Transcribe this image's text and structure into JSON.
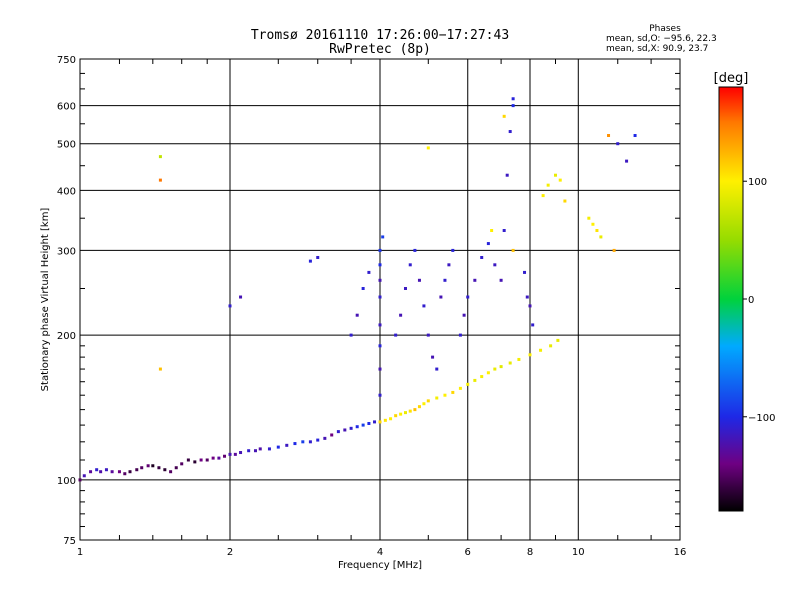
{
  "title": "Tromsø 20161110 17:26:00−17:27:43",
  "subtitle": "RwPretec (8p)",
  "phases": {
    "heading": "Phases",
    "line_o": "mean, sd,O:  −95.6, 22.3",
    "line_x": "mean, sd,X:  90.9, 23.7"
  },
  "colorbar": {
    "label": "[deg]",
    "ticks": [
      {
        "value": 100,
        "label": "100"
      },
      {
        "value": 0,
        "label": "0"
      },
      {
        "value": -100,
        "label": "−100"
      }
    ],
    "range": [
      -180,
      180
    ]
  },
  "chart_data": {
    "type": "scatter",
    "title": "Tromsø 20161110 17:26:00−17:27:43",
    "subtitle": "RwPretec (8p)",
    "xlabel": "Frequency [MHz]",
    "ylabel": "Stationary phase Virtual Height [km]",
    "xscale": "log",
    "yscale": "log",
    "xlim": [
      1,
      16
    ],
    "ylim": [
      75,
      750
    ],
    "grid": true,
    "x_ticks": [
      {
        "value": 1,
        "label": "1"
      },
      {
        "value": 2,
        "label": "2"
      },
      {
        "value": 4,
        "label": "4"
      },
      {
        "value": 6,
        "label": "6"
      },
      {
        "value": 8,
        "label": "8"
      },
      {
        "value": 10,
        "label": "10"
      },
      {
        "value": 16,
        "label": "16"
      }
    ],
    "y_ticks": [
      {
        "value": 75,
        "label": "75"
      },
      {
        "value": 100,
        "label": "100"
      },
      {
        "value": 200,
        "label": "200"
      },
      {
        "value": 300,
        "label": "300"
      },
      {
        "value": 400,
        "label": "400"
      },
      {
        "value": 500,
        "label": "500"
      },
      {
        "value": 600,
        "label": "600"
      },
      {
        "value": 750,
        "label": "750"
      }
    ],
    "color_variable": "phase [deg]",
    "points": [
      [
        1.0,
        100,
        -150
      ],
      [
        1.02,
        102,
        -120
      ],
      [
        1.05,
        104,
        -130
      ],
      [
        1.08,
        105,
        -110
      ],
      [
        1.1,
        104,
        -125
      ],
      [
        1.13,
        105,
        -115
      ],
      [
        1.16,
        104,
        -130
      ],
      [
        1.2,
        104,
        -140
      ],
      [
        1.23,
        103,
        -150
      ],
      [
        1.26,
        104,
        -160
      ],
      [
        1.3,
        105,
        -155
      ],
      [
        1.33,
        106,
        -150
      ],
      [
        1.37,
        107,
        -145
      ],
      [
        1.4,
        107,
        -170
      ],
      [
        1.44,
        106,
        -160
      ],
      [
        1.48,
        105,
        -165
      ],
      [
        1.52,
        104,
        -150
      ],
      [
        1.56,
        106,
        -155
      ],
      [
        1.6,
        108,
        -150
      ],
      [
        1.65,
        110,
        -160
      ],
      [
        1.7,
        109,
        -165
      ],
      [
        1.75,
        110,
        -140
      ],
      [
        1.8,
        110,
        -150
      ],
      [
        1.85,
        111,
        -140
      ],
      [
        1.9,
        111,
        -130
      ],
      [
        1.95,
        112,
        -145
      ],
      [
        2.0,
        113,
        -120
      ],
      [
        2.05,
        113,
        -130
      ],
      [
        2.1,
        114,
        -120
      ],
      [
        2.18,
        115,
        -110
      ],
      [
        2.25,
        115,
        -120
      ],
      [
        2.3,
        116,
        -125
      ],
      [
        2.4,
        116,
        -110
      ],
      [
        2.5,
        117,
        -100
      ],
      [
        2.6,
        118,
        -115
      ],
      [
        2.7,
        119,
        -100
      ],
      [
        2.8,
        120,
        -90
      ],
      [
        2.9,
        120,
        -110
      ],
      [
        3.0,
        121,
        -105
      ],
      [
        3.1,
        122,
        -120
      ],
      [
        3.2,
        124,
        -140
      ],
      [
        3.3,
        126,
        -110
      ],
      [
        3.4,
        127,
        -120
      ],
      [
        3.5,
        128,
        -110
      ],
      [
        3.6,
        129,
        -100
      ],
      [
        3.7,
        130,
        -90
      ],
      [
        3.8,
        131,
        -100
      ],
      [
        3.9,
        132,
        -110
      ],
      [
        4.0,
        132,
        110
      ],
      [
        4.1,
        133,
        105
      ],
      [
        4.2,
        134,
        100
      ],
      [
        4.3,
        136,
        110
      ],
      [
        4.4,
        137,
        100
      ],
      [
        4.5,
        138,
        90
      ],
      [
        4.6,
        139,
        105
      ],
      [
        4.7,
        140,
        120
      ],
      [
        4.8,
        142,
        110
      ],
      [
        4.9,
        144,
        100
      ],
      [
        5.0,
        146,
        110
      ],
      [
        5.2,
        148,
        95
      ],
      [
        5.4,
        150,
        100
      ],
      [
        5.6,
        152,
        110
      ],
      [
        5.8,
        155,
        100
      ],
      [
        6.0,
        158,
        95
      ],
      [
        6.2,
        161,
        90
      ],
      [
        6.4,
        164,
        95
      ],
      [
        6.6,
        167,
        100
      ],
      [
        6.8,
        170,
        90
      ],
      [
        7.0,
        172,
        85
      ],
      [
        7.3,
        175,
        90
      ],
      [
        7.6,
        178,
        95
      ],
      [
        8.0,
        182,
        100
      ],
      [
        8.4,
        186,
        95
      ],
      [
        8.8,
        190,
        90
      ],
      [
        9.1,
        195,
        90
      ],
      [
        4.0,
        150,
        -110
      ],
      [
        4.0,
        170,
        -120
      ],
      [
        4.0,
        190,
        -105
      ],
      [
        4.0,
        210,
        -115
      ],
      [
        4.0,
        240,
        -110
      ],
      [
        4.0,
        260,
        -120
      ],
      [
        4.0,
        280,
        -100
      ],
      [
        4.0,
        300,
        -95
      ],
      [
        4.05,
        320,
        -90
      ],
      [
        4.3,
        200,
        -110
      ],
      [
        4.4,
        220,
        -120
      ],
      [
        4.5,
        250,
        -115
      ],
      [
        4.6,
        280,
        -110
      ],
      [
        4.7,
        300,
        -105
      ],
      [
        4.8,
        260,
        -120
      ],
      [
        4.9,
        230,
        -110
      ],
      [
        5.0,
        200,
        -115
      ],
      [
        5.1,
        180,
        -120
      ],
      [
        5.2,
        170,
        -110
      ],
      [
        5.3,
        240,
        -120
      ],
      [
        5.4,
        260,
        -110
      ],
      [
        5.5,
        280,
        -115
      ],
      [
        5.6,
        300,
        -105
      ],
      [
        5.8,
        200,
        -110
      ],
      [
        5.9,
        220,
        -120
      ],
      [
        6.0,
        240,
        -110
      ],
      [
        6.2,
        260,
        -120
      ],
      [
        6.4,
        290,
        -110
      ],
      [
        6.6,
        310,
        -105
      ],
      [
        6.8,
        280,
        -115
      ],
      [
        7.0,
        260,
        -120
      ],
      [
        7.1,
        330,
        -110
      ],
      [
        7.2,
        430,
        -115
      ],
      [
        7.3,
        530,
        -110
      ],
      [
        7.4,
        620,
        -105
      ],
      [
        7.4,
        600,
        -100
      ],
      [
        7.8,
        270,
        -110
      ],
      [
        7.9,
        240,
        -115
      ],
      [
        8.0,
        230,
        -120
      ],
      [
        8.1,
        210,
        -110
      ],
      [
        8.5,
        390,
        100
      ],
      [
        8.7,
        410,
        95
      ],
      [
        9.0,
        430,
        90
      ],
      [
        9.2,
        420,
        100
      ],
      [
        9.4,
        380,
        110
      ],
      [
        10.5,
        350,
        95
      ],
      [
        10.7,
        340,
        100
      ],
      [
        10.9,
        330,
        105
      ],
      [
        11.1,
        320,
        90
      ],
      [
        12.0,
        500,
        -110
      ],
      [
        12.5,
        460,
        -115
      ],
      [
        1.45,
        470,
        70
      ],
      [
        1.45,
        420,
        150
      ],
      [
        1.45,
        170,
        120
      ],
      [
        2.0,
        230,
        -110
      ],
      [
        2.1,
        240,
        -120
      ],
      [
        2.9,
        285,
        -105
      ],
      [
        3.0,
        290,
        -110
      ],
      [
        3.5,
        200,
        -110
      ],
      [
        3.6,
        220,
        -120
      ],
      [
        3.7,
        250,
        -105
      ],
      [
        3.8,
        270,
        -110
      ],
      [
        5.0,
        490,
        100
      ],
      [
        6.7,
        330,
        100
      ],
      [
        7.1,
        570,
        110
      ],
      [
        7.4,
        300,
        120
      ],
      [
        11.5,
        520,
        140
      ],
      [
        11.8,
        300,
        130
      ],
      [
        13.0,
        520,
        -100
      ]
    ]
  }
}
